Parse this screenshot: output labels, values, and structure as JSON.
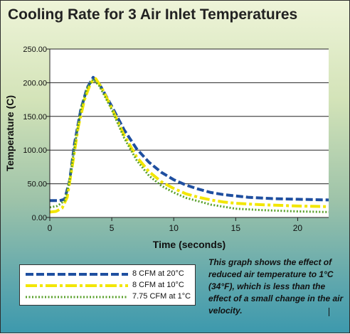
{
  "chart_data": {
    "type": "line",
    "title": "Cooling Rate for 3 Air Inlet Temperatures",
    "xlabel": "Time (seconds)",
    "ylabel": "Temperature (C)",
    "xlim": [
      0,
      22.5
    ],
    "ylim": [
      0,
      250
    ],
    "x_ticks": [
      0,
      5,
      10,
      15,
      20
    ],
    "y_ticks": [
      "0.00",
      "50.00",
      "100.00",
      "150.00",
      "200.00",
      "250.00"
    ],
    "grid": "horizontal",
    "legend_position": "bottom-left",
    "series": [
      {
        "name": "8 CFM at 20°C",
        "color": "#1f4fa0",
        "style": "dashed",
        "points": [
          [
            0,
            25
          ],
          [
            0.8,
            25
          ],
          [
            1.2,
            27
          ],
          [
            1.6,
            55
          ],
          [
            2,
            110
          ],
          [
            2.5,
            160
          ],
          [
            3,
            192
          ],
          [
            3.5,
            208
          ],
          [
            4,
            198
          ],
          [
            5,
            165
          ],
          [
            6,
            130
          ],
          [
            7,
            102
          ],
          [
            8,
            82
          ],
          [
            9,
            67
          ],
          [
            10,
            56
          ],
          [
            11,
            48
          ],
          [
            12,
            42
          ],
          [
            13,
            37
          ],
          [
            14,
            34
          ],
          [
            15,
            32
          ],
          [
            16,
            30
          ],
          [
            18,
            28
          ],
          [
            20,
            27
          ],
          [
            22.5,
            26
          ]
        ]
      },
      {
        "name": "8 CFM at 10°C",
        "color": "#f2e600",
        "style": "dash-dot",
        "points": [
          [
            0,
            8
          ],
          [
            0.5,
            9
          ],
          [
            1,
            14
          ],
          [
            1.4,
            30
          ],
          [
            1.8,
            75
          ],
          [
            2.3,
            135
          ],
          [
            2.8,
            175
          ],
          [
            3.3,
            200
          ],
          [
            3.7,
            206
          ],
          [
            4.2,
            192
          ],
          [
            5,
            162
          ],
          [
            6,
            122
          ],
          [
            7,
            90
          ],
          [
            8,
            68
          ],
          [
            9,
            53
          ],
          [
            10,
            43
          ],
          [
            11,
            35
          ],
          [
            12,
            30
          ],
          [
            13,
            26
          ],
          [
            14,
            23
          ],
          [
            15,
            21
          ],
          [
            17,
            19
          ],
          [
            20,
            17
          ],
          [
            22.5,
            16
          ]
        ]
      },
      {
        "name": "7.75 CFM at 1°C",
        "color": "#5aa02c",
        "style": "dotted",
        "points": [
          [
            0,
            15
          ],
          [
            0.6,
            17
          ],
          [
            1.2,
            25
          ],
          [
            1.6,
            55
          ],
          [
            2,
            105
          ],
          [
            2.5,
            160
          ],
          [
            3,
            192
          ],
          [
            3.5,
            205
          ],
          [
            4,
            195
          ],
          [
            5,
            160
          ],
          [
            6,
            118
          ],
          [
            7,
            85
          ],
          [
            8,
            62
          ],
          [
            9,
            47
          ],
          [
            10,
            37
          ],
          [
            11,
            29
          ],
          [
            12,
            24
          ],
          [
            13,
            19
          ],
          [
            14,
            16
          ],
          [
            15,
            13
          ],
          [
            17,
            11
          ],
          [
            20,
            9
          ],
          [
            22.5,
            8
          ]
        ]
      }
    ]
  },
  "caption": {
    "text": "This graph shows the effect of reduced air temperature to 1°C (34°F), which is less than the effect of a small change in the air velocity."
  }
}
